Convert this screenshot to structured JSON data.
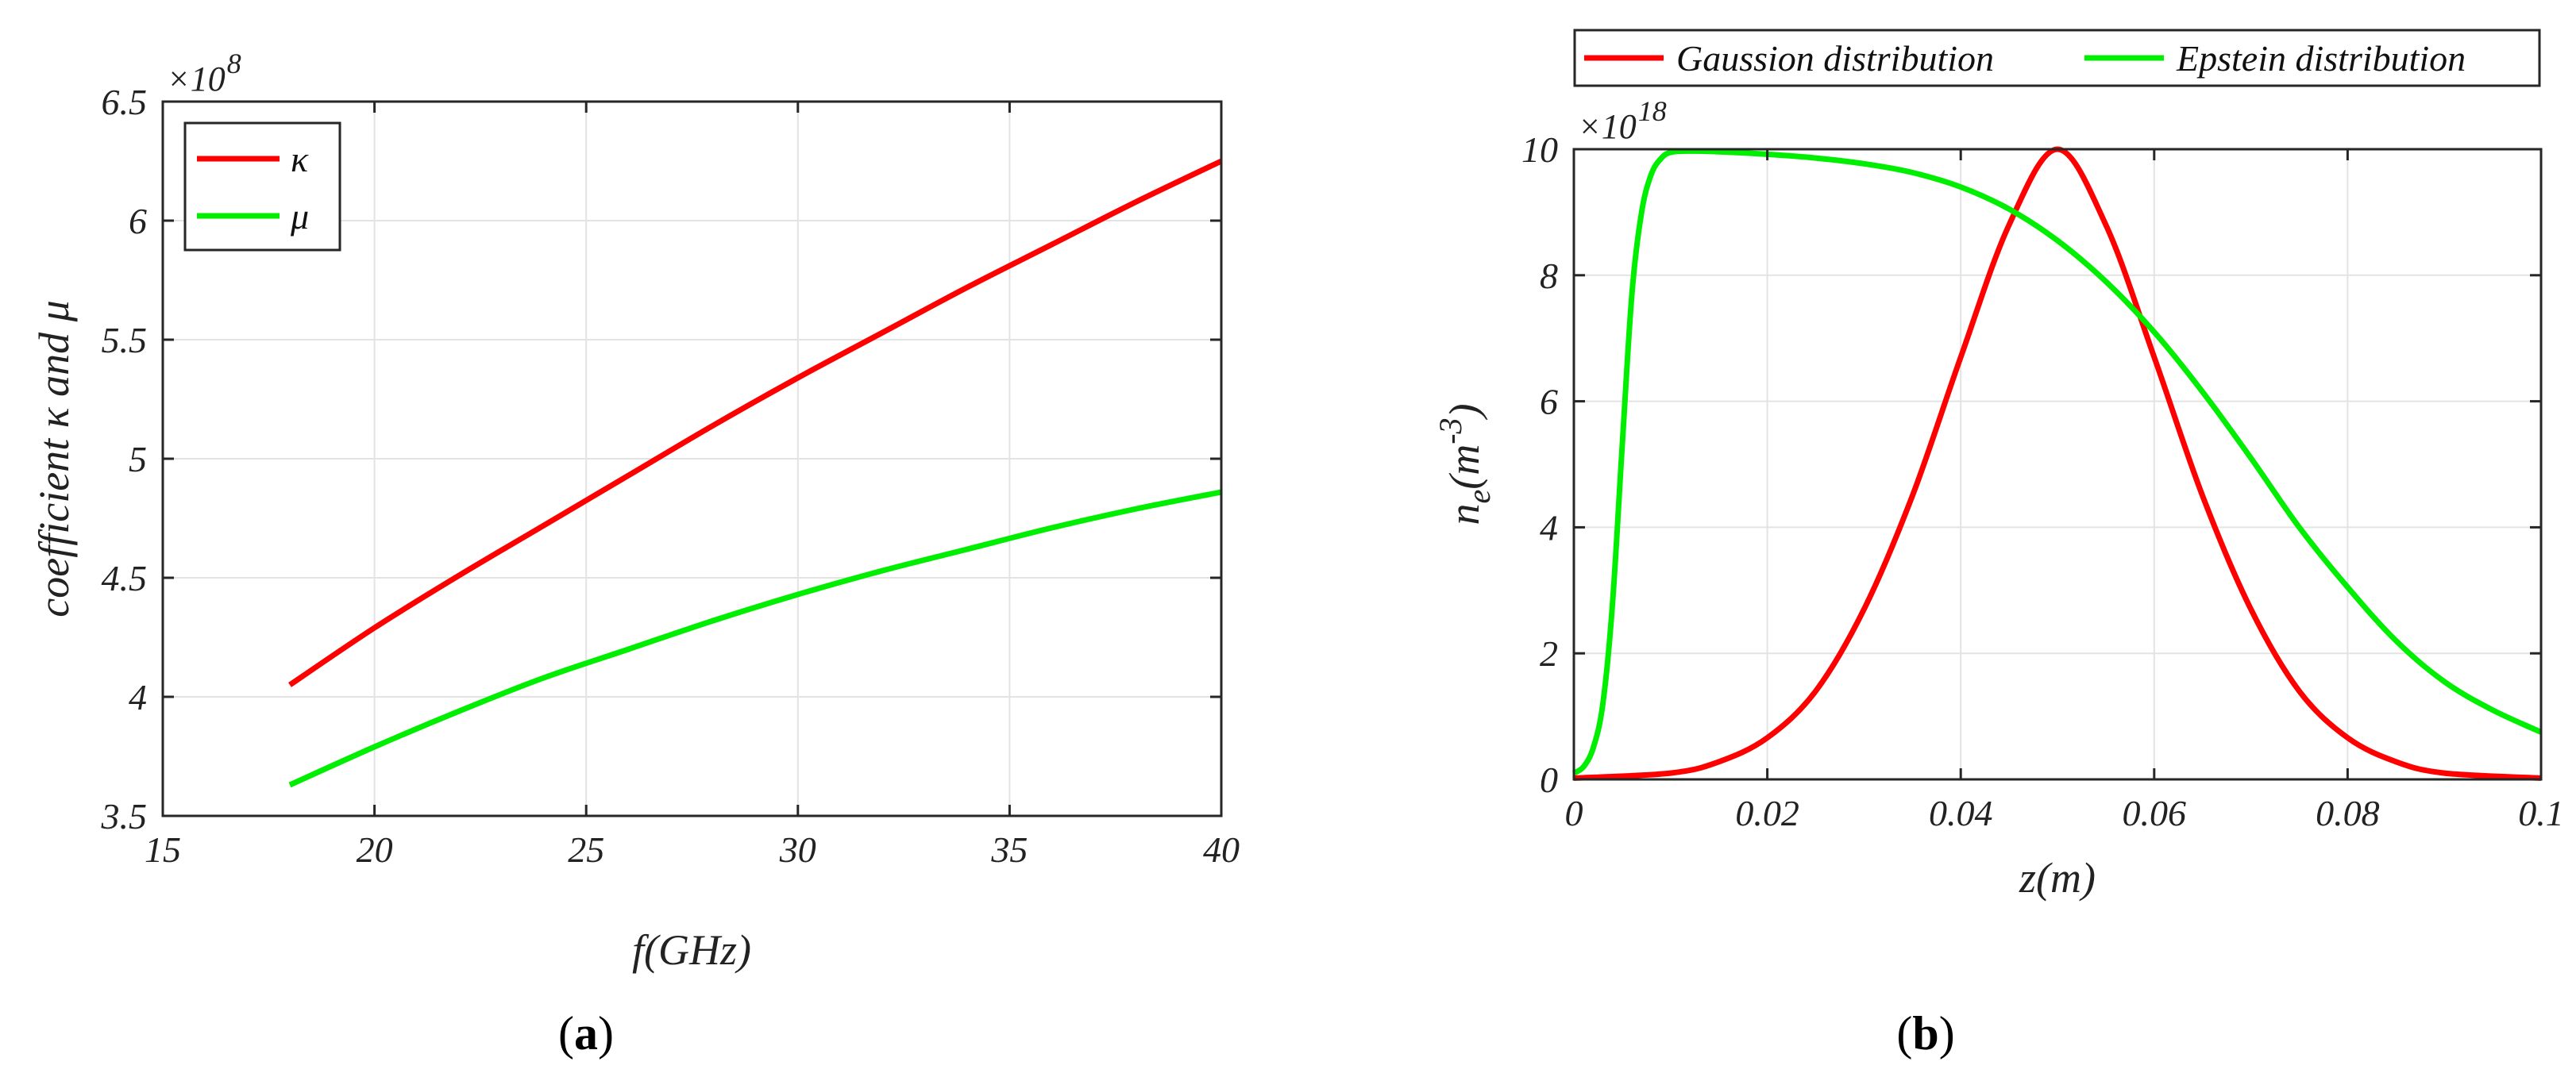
{
  "chart_data": [
    {
      "type": "line",
      "panel_label": "a",
      "xlabel": "f(GHz)",
      "ylabel": "coefficient κ and μ",
      "y_multiplier": "×10",
      "y_multiplier_exp": "8",
      "xlim": [
        15,
        40
      ],
      "ylim": [
        3.5,
        6.5
      ],
      "xticks": [
        15,
        20,
        25,
        30,
        35,
        40
      ],
      "yticks": [
        3.5,
        4,
        4.5,
        5,
        5.5,
        6,
        6.5
      ],
      "xtick_labels": [
        "15",
        "20",
        "25",
        "30",
        "35",
        "40"
      ],
      "ytick_labels": [
        "3.5",
        "4",
        "4.5",
        "5",
        "5.5",
        "6",
        "6.5"
      ],
      "grid": true,
      "legend_position": "top-left",
      "series": [
        {
          "name": "κ",
          "color": "#ff0000",
          "x": [
            18,
            20,
            22,
            24,
            26,
            28,
            30,
            32,
            34,
            36,
            38,
            40
          ],
          "y": [
            4.05,
            4.29,
            4.51,
            4.72,
            4.93,
            5.14,
            5.34,
            5.53,
            5.72,
            5.9,
            6.08,
            6.25
          ]
        },
        {
          "name": "μ",
          "color": "#00ee00",
          "x": [
            18,
            20,
            22,
            24,
            26,
            28,
            30,
            32,
            34,
            36,
            38,
            40
          ],
          "y": [
            3.63,
            3.79,
            3.94,
            4.08,
            4.2,
            4.32,
            4.43,
            4.53,
            4.62,
            4.71,
            4.79,
            4.86
          ]
        }
      ]
    },
    {
      "type": "line",
      "panel_label": "b",
      "xlabel": "z(m)",
      "ylabel_main": "n",
      "ylabel_sub": "e",
      "ylabel_rest": "(m",
      "ylabel_sup": "-3",
      "ylabel_close": ")",
      "y_multiplier": "×10",
      "y_multiplier_exp": "18",
      "xlim": [
        0,
        0.1
      ],
      "ylim": [
        0,
        10
      ],
      "xticks": [
        0,
        0.02,
        0.04,
        0.06,
        0.08,
        0.1
      ],
      "yticks": [
        0,
        2,
        4,
        6,
        8,
        10
      ],
      "xtick_labels": [
        "0",
        "0.02",
        "0.04",
        "0.06",
        "0.08",
        "0.1"
      ],
      "ytick_labels": [
        "0",
        "2",
        "4",
        "6",
        "8",
        "10"
      ],
      "grid": true,
      "legend_position": "top, outside, horizontal",
      "series": [
        {
          "name": "Gaussion distribution",
          "color": "#ff0000",
          "x": [
            0,
            0.01,
            0.015,
            0.02,
            0.025,
            0.03,
            0.035,
            0.04,
            0.045,
            0.05,
            0.055,
            0.06,
            0.065,
            0.07,
            0.075,
            0.08,
            0.085,
            0.09,
            0.1
          ],
          "y": [
            0.02,
            0.1,
            0.28,
            0.66,
            1.4,
            2.7,
            4.5,
            6.7,
            8.8,
            10.0,
            8.8,
            6.7,
            4.5,
            2.7,
            1.4,
            0.66,
            0.28,
            0.1,
            0.02
          ]
        },
        {
          "name": "Epstein distribution",
          "color": "#00ee00",
          "x": [
            0,
            0.001,
            0.002,
            0.003,
            0.004,
            0.005,
            0.006,
            0.007,
            0.008,
            0.009,
            0.01,
            0.012,
            0.015,
            0.02,
            0.025,
            0.03,
            0.035,
            0.04,
            0.045,
            0.05,
            0.055,
            0.06,
            0.065,
            0.07,
            0.075,
            0.08,
            0.085,
            0.09,
            0.095,
            0.1
          ],
          "y": [
            0.1,
            0.2,
            0.5,
            1.2,
            2.8,
            5.3,
            7.7,
            9.0,
            9.6,
            9.85,
            9.95,
            9.97,
            9.96,
            9.92,
            9.86,
            9.77,
            9.63,
            9.4,
            9.05,
            8.55,
            7.9,
            7.1,
            6.15,
            5.1,
            4.0,
            3.05,
            2.2,
            1.55,
            1.1,
            0.75
          ]
        }
      ]
    }
  ]
}
